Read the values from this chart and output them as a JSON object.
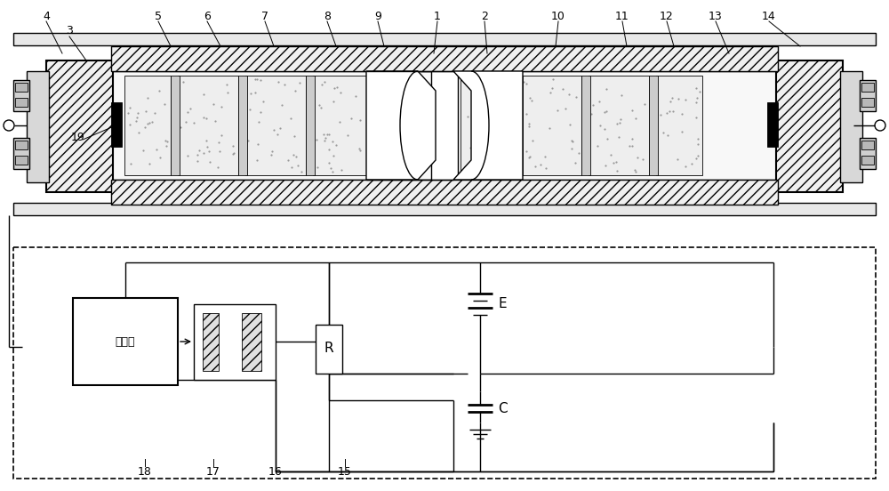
{
  "bg_color": "#ffffff",
  "lc": "#000000",
  "fig_w": 10.0,
  "fig_h": 5.52,
  "top_labels": [
    [
      "4",
      52,
      18,
      70,
      60
    ],
    [
      "3",
      78,
      35,
      97,
      68
    ],
    [
      "5",
      178,
      18,
      192,
      52
    ],
    [
      "6",
      233,
      18,
      248,
      52
    ],
    [
      "7",
      298,
      18,
      308,
      52
    ],
    [
      "8",
      368,
      18,
      378,
      52
    ],
    [
      "9",
      425,
      18,
      432,
      52
    ],
    [
      "1",
      492,
      18,
      488,
      60
    ],
    [
      "2",
      545,
      18,
      548,
      60
    ],
    [
      "10",
      628,
      18,
      625,
      52
    ],
    [
      "11",
      700,
      18,
      705,
      52
    ],
    [
      "12",
      750,
      18,
      758,
      52
    ],
    [
      "13",
      805,
      18,
      820,
      60
    ],
    [
      "14",
      865,
      18,
      900,
      52
    ]
  ],
  "label19": [
    88,
    155,
    128,
    142
  ],
  "bot_labels": [
    [
      "15",
      388,
      530
    ],
    [
      "16",
      310,
      530
    ],
    [
      "17",
      240,
      530
    ],
    [
      "18",
      163,
      530
    ]
  ]
}
